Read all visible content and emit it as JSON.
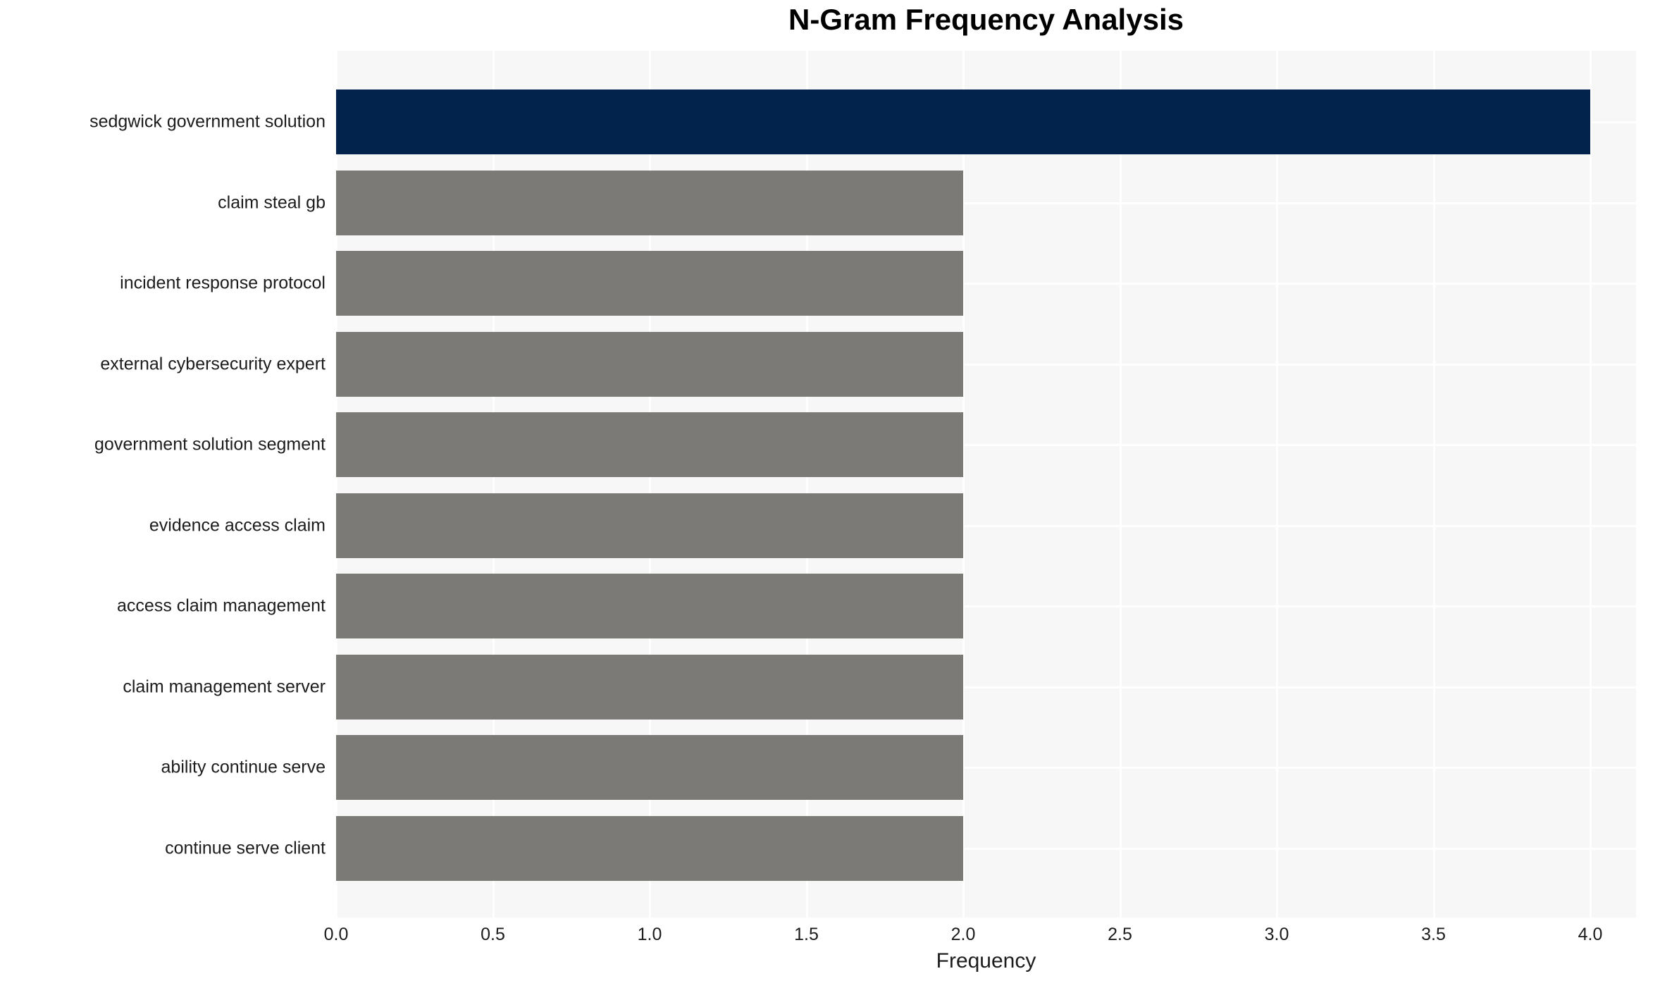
{
  "chart_data": {
    "type": "bar",
    "orientation": "horizontal",
    "title": "N-Gram Frequency Analysis",
    "xlabel": "Frequency",
    "ylabel": "",
    "categories": [
      "sedgwick government solution",
      "claim steal gb",
      "incident response protocol",
      "external cybersecurity expert",
      "government solution segment",
      "evidence access claim",
      "access claim management",
      "claim management server",
      "ability continue serve",
      "continue serve client"
    ],
    "values": [
      4.0,
      2.0,
      2.0,
      2.0,
      2.0,
      2.0,
      2.0,
      2.0,
      2.0,
      2.0
    ],
    "bar_colors": [
      "#02234c",
      "#7b7a76",
      "#7b7a76",
      "#7b7a76",
      "#7b7a76",
      "#7b7a76",
      "#7b7a76",
      "#7b7a76",
      "#7b7a76",
      "#7b7a76"
    ],
    "xticks": [
      0.0,
      0.5,
      1.0,
      1.5,
      2.0,
      2.5,
      3.0,
      3.5,
      4.0
    ],
    "xtick_labels": [
      "0.0",
      "0.5",
      "1.0",
      "1.5",
      "2.0",
      "2.5",
      "3.0",
      "3.5",
      "4.0"
    ],
    "xlim": [
      0,
      4.15
    ],
    "grid": true,
    "legend": false,
    "colors": {
      "highlight_bar": "#02234c",
      "default_bar": "#7b7a76",
      "plot_background": "#f7f7f7",
      "gridline": "#ffffff",
      "text": "#1c1c1c",
      "title_text": "#000000",
      "page_background": "#ffffff"
    }
  }
}
